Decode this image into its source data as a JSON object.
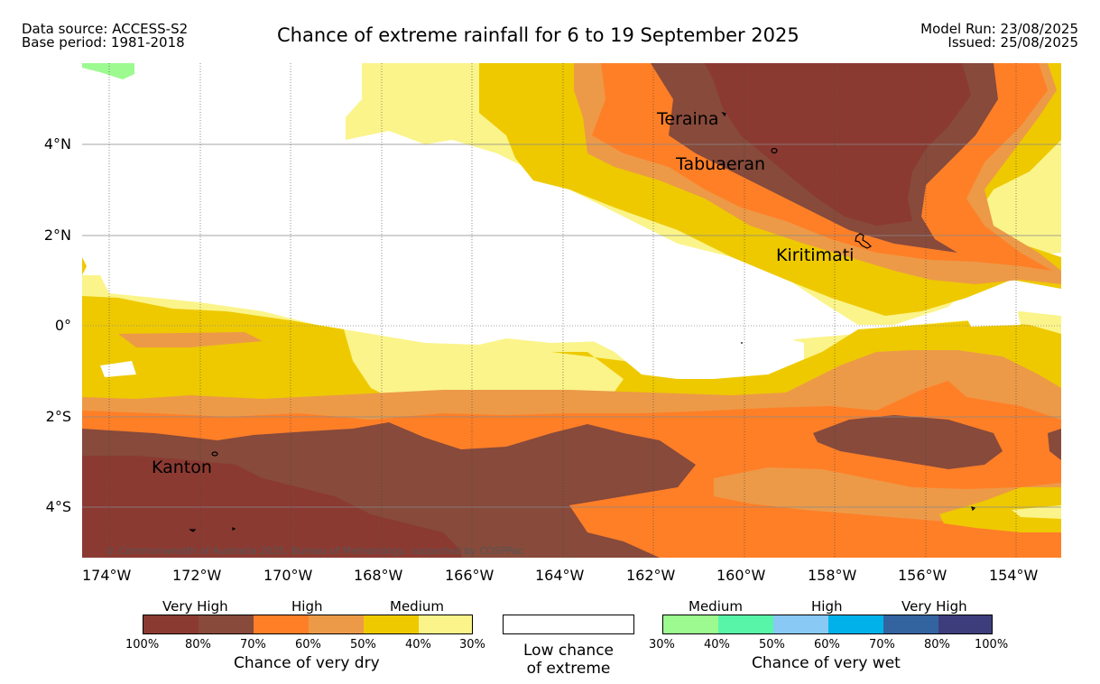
{
  "header": {
    "left_line1": "Data source: ACCESS-S2",
    "left_line2": "Base period: 1981-2018",
    "title": "Chance of extreme rainfall for 6 to 19 September 2025",
    "right_line1": "Model Run: 23/08/2025",
    "right_line2": "Issued: 25/08/2025"
  },
  "map": {
    "lat_ticks": [
      "4°N",
      "2°N",
      "0°",
      "2°S",
      "4°S"
    ],
    "lon_ticks": [
      "174°W",
      "172°W",
      "170°W",
      "168°W",
      "166°W",
      "164°W",
      "162°W",
      "160°W",
      "158°W",
      "156°W",
      "154°W"
    ],
    "places": [
      "Teraina",
      "Tabuaeran",
      "Kiritimati",
      "Kanton"
    ],
    "copyright": "© Commonwealth of Australia 2025, Bureau of Meteorology, supported by COSPPac"
  },
  "legend": {
    "dry": {
      "categories": [
        "Very High",
        "High",
        "Medium"
      ],
      "percents": [
        "100%",
        "80%",
        "70%",
        "60%",
        "50%",
        "40%",
        "30%"
      ],
      "title": "Chance of very dry",
      "colors": [
        "#8b3a32",
        "#874a3b",
        "#ff7f27",
        "#ec9a48",
        "#eec900",
        "#fbf48a"
      ]
    },
    "low": {
      "line1": "Low chance",
      "line2": "of extreme"
    },
    "wet": {
      "categories": [
        "Medium",
        "High",
        "Very High"
      ],
      "percents": [
        "30%",
        "40%",
        "50%",
        "60%",
        "70%",
        "80%",
        "100%"
      ],
      "title": "Chance of very wet",
      "colors": [
        "#9cfa90",
        "#58f5a8",
        "#88c9f5",
        "#01b1ea",
        "#3364a0",
        "#3e3d7c"
      ]
    }
  }
}
